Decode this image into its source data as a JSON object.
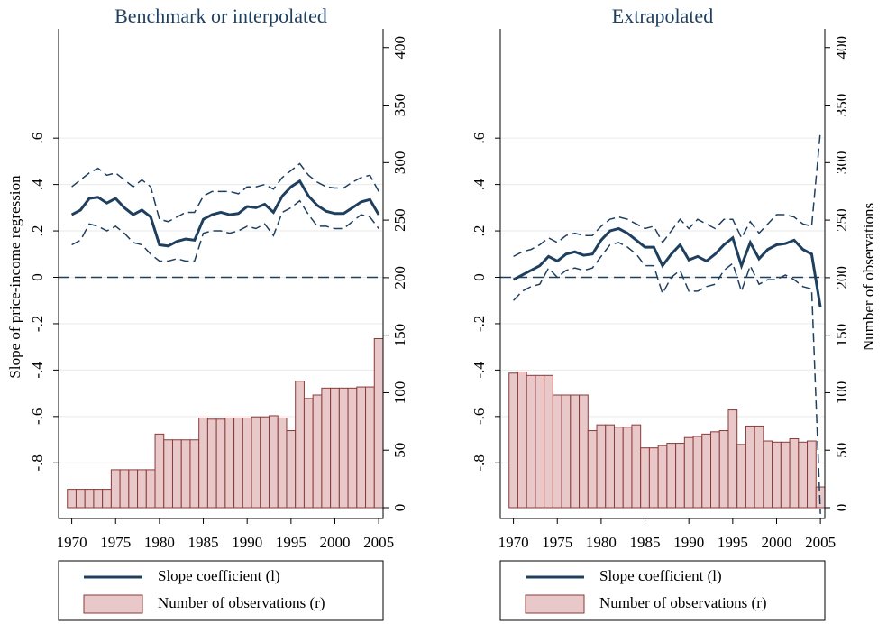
{
  "chart_data": [
    {
      "type": "combo",
      "title": "Benchmark or interpolated",
      "y_label": "Slope of price-income regression",
      "x": [
        1970,
        1971,
        1972,
        1973,
        1974,
        1975,
        1976,
        1977,
        1978,
        1979,
        1980,
        1981,
        1982,
        1983,
        1984,
        1985,
        1986,
        1987,
        1988,
        1989,
        1990,
        1991,
        1992,
        1993,
        1994,
        1995,
        1996,
        1997,
        1998,
        1999,
        2000,
        2001,
        2002,
        2003,
        2004,
        2005
      ],
      "xlim": [
        1968.5,
        2005.5
      ],
      "xticks": [
        1970,
        1975,
        1980,
        1985,
        1990,
        1995,
        2000,
        2005
      ],
      "ylim": [
        -1.04,
        1.04
      ],
      "yticks": [
        {
          "value": -0.8,
          "label": "-.8"
        },
        {
          "value": -0.6,
          "label": "-.6"
        },
        {
          "value": -0.4,
          "label": "-.4"
        },
        {
          "value": -0.2,
          "label": "-.2"
        },
        0,
        {
          "value": 0.2,
          "label": ".2"
        },
        {
          "value": 0.4,
          "label": ".4"
        },
        {
          "value": 0.6,
          "label": ".6"
        }
      ],
      "y2lim": [
        -9.4,
        410
      ],
      "y2ticks": [
        0,
        50,
        100,
        150,
        200,
        250,
        300,
        350,
        400
      ],
      "hline": 0,
      "grid": true,
      "series": [
        {
          "name": "Slope coefficient (l)",
          "color": "#1f3f5f",
          "values": [
            0.27,
            0.29,
            0.34,
            0.345,
            0.32,
            0.34,
            0.3,
            0.27,
            0.29,
            0.26,
            0.14,
            0.135,
            0.155,
            0.165,
            0.16,
            0.25,
            0.27,
            0.28,
            0.27,
            0.275,
            0.305,
            0.3,
            0.315,
            0.28,
            0.35,
            0.39,
            0.415,
            0.35,
            0.31,
            0.285,
            0.275,
            0.275,
            0.3,
            0.325,
            0.335,
            0.27
          ],
          "upper": [
            0.39,
            0.42,
            0.45,
            0.47,
            0.44,
            0.45,
            0.42,
            0.39,
            0.42,
            0.39,
            0.25,
            0.24,
            0.26,
            0.28,
            0.28,
            0.35,
            0.37,
            0.37,
            0.37,
            0.36,
            0.39,
            0.39,
            0.4,
            0.38,
            0.43,
            0.46,
            0.49,
            0.44,
            0.41,
            0.39,
            0.385,
            0.385,
            0.41,
            0.43,
            0.44,
            0.37
          ],
          "lower": [
            0.14,
            0.16,
            0.23,
            0.22,
            0.2,
            0.22,
            0.19,
            0.15,
            0.14,
            0.1,
            0.07,
            0.07,
            0.08,
            0.07,
            0.07,
            0.19,
            0.2,
            0.2,
            0.19,
            0.2,
            0.22,
            0.21,
            0.23,
            0.18,
            0.28,
            0.3,
            0.33,
            0.27,
            0.22,
            0.22,
            0.21,
            0.21,
            0.24,
            0.27,
            0.26,
            0.21
          ]
        },
        {
          "name": "Number of observations (r)",
          "color": "#e8c8c8",
          "edge": "#8b3a3a",
          "axis": "y2",
          "values": [
            16,
            16,
            16,
            16,
            16,
            33,
            33,
            33,
            33,
            33,
            64,
            59,
            59,
            59,
            59,
            78,
            77,
            77,
            78,
            78,
            78,
            79,
            79,
            80,
            78,
            67,
            110,
            95,
            98,
            104,
            104,
            104,
            104,
            105,
            105,
            147
          ]
        }
      ]
    },
    {
      "type": "combo",
      "title": "Extrapolated",
      "y2_label": "Number of observations",
      "x": [
        1970,
        1971,
        1972,
        1973,
        1974,
        1975,
        1976,
        1977,
        1978,
        1979,
        1980,
        1981,
        1982,
        1983,
        1984,
        1985,
        1986,
        1987,
        1988,
        1989,
        1990,
        1991,
        1992,
        1993,
        1994,
        1995,
        1996,
        1997,
        1998,
        1999,
        2000,
        2001,
        2002,
        2003,
        2004,
        2005
      ],
      "xlim": [
        1968.5,
        2005.5
      ],
      "xticks": [
        1970,
        1975,
        1980,
        1985,
        1990,
        1995,
        2000,
        2005
      ],
      "ylim": [
        -1.04,
        1.04
      ],
      "yticks": [
        {
          "value": -0.8,
          "label": "-.8"
        },
        {
          "value": -0.6,
          "label": "-.6"
        },
        {
          "value": -0.4,
          "label": "-.4"
        },
        {
          "value": -0.2,
          "label": "-.2"
        },
        0,
        {
          "value": 0.2,
          "label": ".2"
        },
        {
          "value": 0.4,
          "label": ".4"
        },
        {
          "value": 0.6,
          "label": ".6"
        }
      ],
      "y2lim": [
        -9.4,
        410
      ],
      "y2ticks": [
        0,
        50,
        100,
        150,
        200,
        250,
        300,
        350,
        400
      ],
      "hline": 0,
      "grid": true,
      "series": [
        {
          "name": "Slope coefficient (l)",
          "color": "#1f3f5f",
          "values": [
            -0.01,
            0.01,
            0.03,
            0.05,
            0.09,
            0.07,
            0.1,
            0.11,
            0.095,
            0.1,
            0.16,
            0.2,
            0.21,
            0.19,
            0.16,
            0.13,
            0.13,
            0.05,
            0.1,
            0.14,
            0.075,
            0.09,
            0.07,
            0.1,
            0.14,
            0.17,
            0.05,
            0.15,
            0.08,
            0.12,
            0.14,
            0.145,
            0.16,
            0.12,
            0.1,
            -0.13
          ],
          "upper": [
            0.09,
            0.11,
            0.12,
            0.14,
            0.17,
            0.15,
            0.18,
            0.19,
            0.18,
            0.18,
            0.22,
            0.25,
            0.26,
            0.25,
            0.23,
            0.21,
            0.22,
            0.15,
            0.2,
            0.25,
            0.21,
            0.25,
            0.23,
            0.21,
            0.25,
            0.25,
            0.17,
            0.24,
            0.19,
            0.23,
            0.27,
            0.27,
            0.26,
            0.23,
            0.22,
            0.63
          ],
          "lower": [
            -0.1,
            -0.06,
            -0.04,
            -0.03,
            0.04,
            0,
            0.03,
            0.04,
            0.03,
            0.04,
            0.09,
            0.14,
            0.15,
            0.13,
            0.1,
            0.05,
            0.05,
            -0.07,
            0,
            0.03,
            -0.06,
            -0.06,
            -0.04,
            -0.03,
            0.03,
            0.06,
            -0.06,
            0.05,
            -0.03,
            -0.01,
            -0.01,
            0.01,
            -0.01,
            -0.04,
            -0.05,
            -1.02
          ]
        },
        {
          "name": "Number of observations (r)",
          "color": "#e8c8c8",
          "edge": "#8b3a3a",
          "axis": "y2",
          "values": [
            117,
            118,
            115,
            115,
            115,
            98,
            98,
            98,
            98,
            67,
            72,
            72,
            70,
            70,
            72,
            52,
            52,
            54,
            56,
            56,
            61,
            62,
            64,
            66,
            67,
            85,
            55,
            71,
            71,
            58,
            57,
            57,
            60,
            57,
            58,
            18
          ]
        }
      ]
    }
  ]
}
